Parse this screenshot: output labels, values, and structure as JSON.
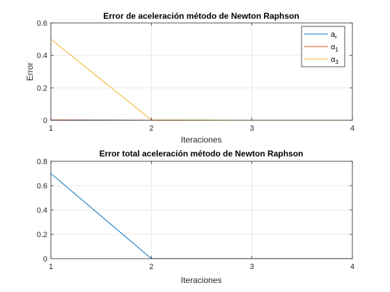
{
  "chart_data": [
    {
      "type": "line",
      "title": "Error de aceleración método de Newton Raphson",
      "xlabel": "Iteraciones",
      "ylabel": "Error",
      "xlim": [
        1,
        4
      ],
      "ylim": [
        0,
        0.6
      ],
      "xticks": [
        1,
        2,
        3,
        4
      ],
      "yticks": [
        0,
        0.2,
        0.4,
        0.6
      ],
      "tick_labels_y": [
        "0",
        "0.2",
        "0.4",
        "0.6"
      ],
      "grid": true,
      "legend": "top-right",
      "x": [
        1,
        2,
        3,
        4
      ],
      "series": [
        {
          "name": "a_r",
          "label_main": "a",
          "label_sub": "r",
          "color": "#0072BD",
          "values": [
            0.002,
            0.0,
            0.0,
            0.0
          ]
        },
        {
          "name": "α_1",
          "label_main": "α",
          "label_sub": "1",
          "color": "#D95319",
          "values": [
            0.002,
            0.0,
            0.0,
            0.0
          ]
        },
        {
          "name": "α_3",
          "label_main": "α",
          "label_sub": "3",
          "color": "#EDB120",
          "values": [
            0.5,
            0.002,
            0.0,
            0.0
          ]
        }
      ]
    },
    {
      "type": "line",
      "title": "Error total aceleración método de Newton Raphson",
      "xlabel": "Iteraciones",
      "ylabel": "",
      "xlim": [
        1,
        4
      ],
      "ylim": [
        0,
        0.8
      ],
      "xticks": [
        1,
        2,
        3,
        4
      ],
      "yticks": [
        0,
        0.2,
        0.4,
        0.6,
        0.8
      ],
      "tick_labels_y": [
        "0",
        "0.2",
        "0.4",
        "0.6",
        "0.8"
      ],
      "grid": true,
      "x": [
        1,
        2,
        3,
        4
      ],
      "series": [
        {
          "name": "",
          "color": "#0072BD",
          "values": [
            0.7,
            0.0,
            0.0,
            0.0
          ]
        }
      ]
    }
  ]
}
